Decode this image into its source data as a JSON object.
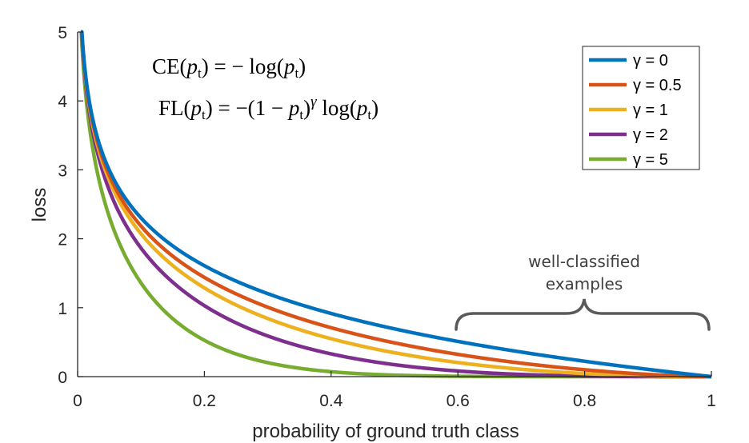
{
  "chart_data": {
    "type": "line",
    "xlabel": "probability of ground truth class",
    "ylabel": "loss",
    "xlim": [
      0,
      1
    ],
    "ylim": [
      0,
      5
    ],
    "xticks": [
      "0",
      "0.2",
      "0.4",
      "0.6",
      "0.8",
      "1"
    ],
    "yticks": [
      "0",
      "1",
      "2",
      "3",
      "4",
      "5"
    ],
    "grid": false,
    "legend_position": "top-right",
    "formula_ce": "CE(pt) = − log(pt)",
    "formula_fl": "FL(pt) = −(1 − pt)^γ log(pt)",
    "annotation": [
      "well-classified",
      "examples"
    ],
    "annotation_brace_range": [
      0.6,
      1.0
    ],
    "series": [
      {
        "name": "γ = 0",
        "gamma": 0,
        "color": "#0072BD",
        "x": [
          0.01,
          0.05,
          0.1,
          0.2,
          0.4,
          0.6,
          0.8,
          1.0
        ],
        "y": [
          4.61,
          3.0,
          2.3,
          1.61,
          0.92,
          0.51,
          0.22,
          0
        ]
      },
      {
        "name": "γ = 0.5",
        "gamma": 0.5,
        "color": "#D95319",
        "x": [
          0.01,
          0.05,
          0.1,
          0.2,
          0.4,
          0.6,
          0.8,
          1.0
        ],
        "y": [
          4.58,
          2.92,
          2.18,
          1.44,
          0.71,
          0.32,
          0.1,
          0
        ]
      },
      {
        "name": "γ = 1",
        "gamma": 1,
        "color": "#EDB120",
        "x": [
          0.01,
          0.05,
          0.1,
          0.2,
          0.4,
          0.6,
          0.8,
          1.0
        ],
        "y": [
          4.56,
          2.85,
          2.07,
          1.29,
          0.55,
          0.2,
          0.04,
          0
        ]
      },
      {
        "name": "γ = 2",
        "gamma": 2,
        "color": "#7E2F8E",
        "x": [
          0.01,
          0.05,
          0.1,
          0.2,
          0.4,
          0.6,
          0.8,
          1.0
        ],
        "y": [
          4.52,
          2.71,
          1.87,
          1.03,
          0.33,
          0.08,
          0.01,
          0
        ]
      },
      {
        "name": "γ = 5",
        "gamma": 5,
        "color": "#77AC30",
        "x": [
          0.01,
          0.05,
          0.1,
          0.2,
          0.4,
          0.6,
          0.8,
          1.0
        ],
        "y": [
          4.38,
          2.32,
          1.36,
          0.53,
          0.07,
          0.01,
          0.0,
          0
        ]
      }
    ]
  }
}
